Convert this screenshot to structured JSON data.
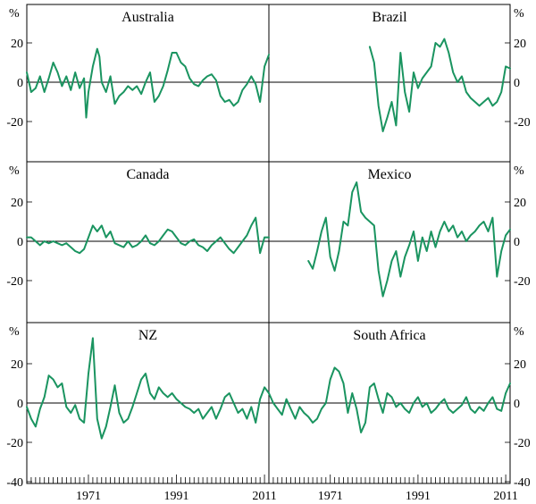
{
  "chart_data": {
    "type": "line",
    "unit": "%",
    "x_ticks": [
      "1971",
      "1991",
      "2011"
    ],
    "xlim": [
      1957,
      2012
    ],
    "y_ticks_main": [
      20,
      0,
      -20
    ],
    "y_ticks_bottom": [
      20,
      0,
      -20,
      -40
    ],
    "ylim_row": [
      -20,
      40
    ],
    "ylim_bottom": [
      -40,
      40
    ],
    "line_color": "#1a9460",
    "grid": false,
    "legend": "none",
    "panels": [
      {
        "title": "Australia",
        "x": [
          1957,
          1958,
          1959,
          1960,
          1961,
          1962,
          1963,
          1964,
          1965,
          1966,
          1967,
          1968,
          1969,
          1970,
          1970.5,
          1971,
          1972,
          1973,
          1973.5,
          1974,
          1975,
          1976,
          1977,
          1978,
          1979,
          1980,
          1981,
          1982,
          1983,
          1984,
          1985,
          1986,
          1987,
          1988,
          1989,
          1990,
          1991,
          1992,
          1993,
          1994,
          1995,
          1996,
          1997,
          1998,
          1999,
          2000,
          2001,
          2002,
          2003,
          2004,
          2005,
          2006,
          2007,
          2008,
          2009,
          2010,
          2011,
          2012
        ],
        "y": [
          5,
          -5,
          -3,
          3,
          -5,
          2,
          10,
          5,
          -2,
          3,
          -4,
          5,
          -3,
          2,
          -18,
          -5,
          8,
          17,
          13,
          0,
          -5,
          3,
          -11,
          -7,
          -5,
          -2,
          -4,
          -2,
          -6,
          0,
          5,
          -10,
          -7,
          -2,
          6,
          15,
          15,
          10,
          8,
          2,
          -1,
          -2,
          1,
          3,
          4,
          1,
          -7,
          -10,
          -9,
          -12,
          -10,
          -4,
          -1,
          3,
          -1,
          -10,
          8,
          14
        ]
      },
      {
        "title": "Brazil",
        "x": [
          1980,
          1981,
          1982,
          1983,
          1984,
          1985,
          1986,
          1987,
          1988,
          1989,
          1990,
          1991,
          1992,
          1993,
          1994,
          1995,
          1996,
          1997,
          1998,
          1999,
          2000,
          2001,
          2002,
          2003,
          2004,
          2005,
          2006,
          2007,
          2008,
          2009,
          2010,
          2011,
          2012
        ],
        "y": [
          18,
          10,
          -12,
          -25,
          -18,
          -10,
          -22,
          15,
          -5,
          -15,
          5,
          -3,
          2,
          5,
          8,
          20,
          18,
          22,
          15,
          5,
          0,
          3,
          -5,
          -8,
          -10,
          -12,
          -10,
          -8,
          -12,
          -10,
          -5,
          8,
          7
        ]
      },
      {
        "title": "Canada",
        "x": [
          1957,
          1958,
          1959,
          1960,
          1961,
          1962,
          1963,
          1964,
          1965,
          1966,
          1967,
          1968,
          1969,
          1970,
          1971,
          1972,
          1973,
          1974,
          1975,
          1976,
          1977,
          1978,
          1979,
          1980,
          1981,
          1982,
          1983,
          1984,
          1985,
          1986,
          1987,
          1988,
          1989,
          1990,
          1991,
          1992,
          1993,
          1994,
          1995,
          1996,
          1997,
          1998,
          1999,
          2000,
          2001,
          2002,
          2003,
          2004,
          2005,
          2006,
          2007,
          2008,
          2009,
          2010,
          2011,
          2012
        ],
        "y": [
          2,
          2,
          0,
          -2,
          0,
          -1,
          0,
          -1,
          -2,
          -1,
          -3,
          -5,
          -6,
          -4,
          2,
          8,
          5,
          8,
          2,
          5,
          -1,
          -2,
          -3,
          0,
          -3,
          -2,
          0,
          3,
          -1,
          -2,
          0,
          3,
          6,
          5,
          2,
          -1,
          -2,
          0,
          1,
          -2,
          -3,
          -5,
          -2,
          0,
          2,
          -1,
          -4,
          -6,
          -3,
          0,
          3,
          8,
          12,
          -6,
          2,
          2
        ]
      },
      {
        "title": "Mexico",
        "x": [
          1966,
          1967,
          1968,
          1969,
          1970,
          1971,
          1972,
          1973,
          1974,
          1975,
          1976,
          1977,
          1978,
          1979,
          1980,
          1981,
          1982,
          1983,
          1984,
          1985,
          1986,
          1987,
          1988,
          1989,
          1990,
          1991,
          1992,
          1993,
          1994,
          1995,
          1996,
          1997,
          1998,
          1999,
          2000,
          2001,
          2002,
          2003,
          2004,
          2005,
          2006,
          2007,
          2008,
          2009,
          2010,
          2011,
          2012
        ],
        "y": [
          -10,
          -14,
          -5,
          5,
          12,
          -8,
          -15,
          -5,
          10,
          8,
          25,
          30,
          15,
          12,
          10,
          8,
          -15,
          -28,
          -20,
          -10,
          -5,
          -18,
          -8,
          -2,
          5,
          -10,
          2,
          -5,
          5,
          -3,
          5,
          10,
          5,
          8,
          2,
          5,
          0,
          3,
          5,
          8,
          10,
          5,
          12,
          -18,
          -5,
          3,
          6
        ]
      },
      {
        "title": "NZ",
        "x": [
          1957,
          1958,
          1959,
          1960,
          1961,
          1962,
          1963,
          1964,
          1965,
          1966,
          1967,
          1968,
          1969,
          1970,
          1971,
          1972,
          1973,
          1974,
          1975,
          1976,
          1977,
          1978,
          1979,
          1980,
          1981,
          1982,
          1983,
          1984,
          1985,
          1986,
          1987,
          1988,
          1989,
          1990,
          1991,
          1992,
          1993,
          1994,
          1995,
          1996,
          1997,
          1998,
          1999,
          2000,
          2001,
          2002,
          2003,
          2004,
          2005,
          2006,
          2007,
          2008,
          2009,
          2010,
          2011,
          2012
        ],
        "y": [
          -2,
          -8,
          -12,
          -3,
          3,
          14,
          12,
          8,
          10,
          -2,
          -5,
          -1,
          -8,
          -10,
          15,
          33,
          -8,
          -18,
          -12,
          -2,
          9,
          -5,
          -10,
          -8,
          -2,
          5,
          12,
          15,
          5,
          2,
          8,
          5,
          3,
          5,
          2,
          0,
          -2,
          -3,
          -5,
          -3,
          -8,
          -5,
          -2,
          -8,
          -3,
          3,
          5,
          0,
          -5,
          -3,
          -8,
          -2,
          -10,
          2,
          8,
          5
        ]
      },
      {
        "title": "South Africa",
        "x": [
          1957,
          1958,
          1959,
          1960,
          1961,
          1962,
          1963,
          1964,
          1965,
          1966,
          1967,
          1968,
          1969,
          1970,
          1971,
          1972,
          1973,
          1974,
          1975,
          1976,
          1977,
          1978,
          1979,
          1980,
          1981,
          1982,
          1983,
          1984,
          1985,
          1986,
          1987,
          1988,
          1989,
          1990,
          1991,
          1992,
          1993,
          1994,
          1995,
          1996,
          1997,
          1998,
          1999,
          2000,
          2001,
          2002,
          2003,
          2004,
          2005,
          2006,
          2007,
          2008,
          2009,
          2010,
          2011,
          2012
        ],
        "y": [
          5,
          0,
          -3,
          -6,
          2,
          -3,
          -8,
          -2,
          -5,
          -7,
          -10,
          -8,
          -3,
          0,
          12,
          18,
          16,
          10,
          -5,
          5,
          -3,
          -15,
          -10,
          8,
          10,
          2,
          -5,
          5,
          3,
          -2,
          0,
          -3,
          -5,
          0,
          3,
          -2,
          0,
          -5,
          -3,
          0,
          2,
          -3,
          -5,
          -3,
          -1,
          3,
          -3,
          -5,
          -2,
          -4,
          0,
          3,
          -3,
          -4,
          5,
          10
        ]
      }
    ]
  }
}
